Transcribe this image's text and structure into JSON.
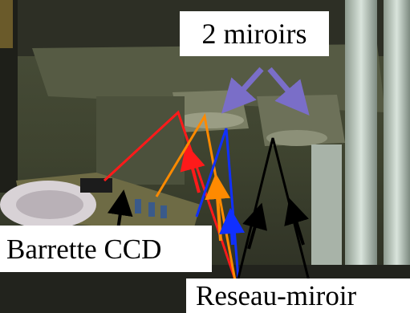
{
  "labels": {
    "mirrors": "2 miroirs",
    "ccd": "Barrette CCD",
    "grating": "Reseau-miroir"
  },
  "colors": {
    "beam_red": "#ff1a1a",
    "beam_orange": "#ff8a00",
    "beam_blue": "#1030ff",
    "beam_black": "#000000",
    "pointer_purple": "#7a6ec8"
  }
}
